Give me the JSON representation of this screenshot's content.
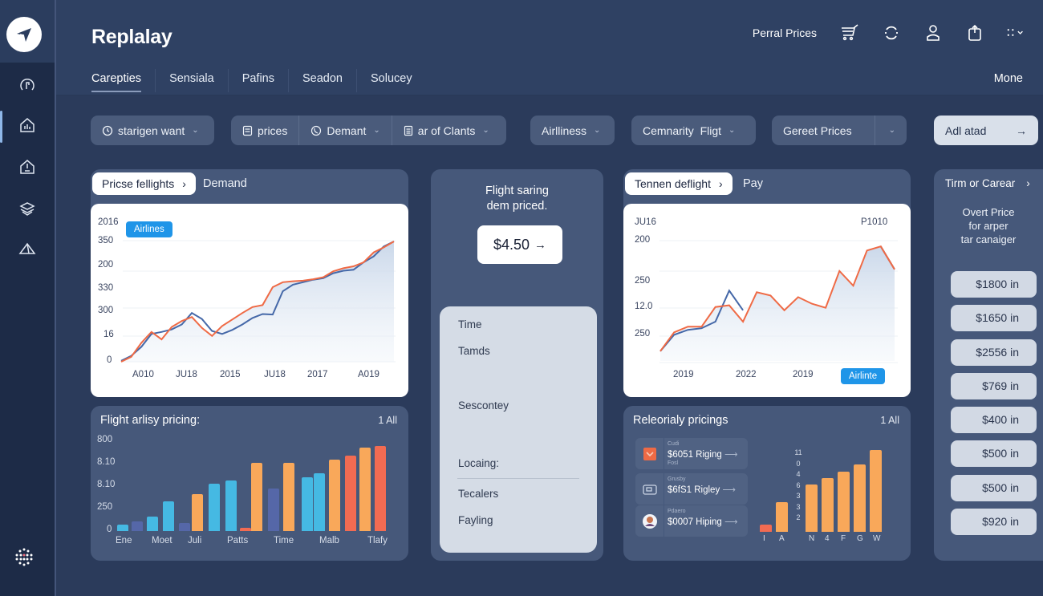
{
  "app": {
    "title": "Replalay",
    "logo_icon": "paper-plane-icon"
  },
  "sidebar": {
    "items": [
      {
        "name": "gauge",
        "icon": "gauge-icon",
        "active": false
      },
      {
        "name": "home-chart",
        "icon": "home-chart-icon",
        "active": true
      },
      {
        "name": "home-alert",
        "icon": "home-alert-icon",
        "active": false
      },
      {
        "name": "layers",
        "icon": "layers-icon",
        "active": false
      },
      {
        "name": "tent",
        "icon": "tent-icon",
        "active": false
      }
    ],
    "bottom_icon": "globe-dots-icon"
  },
  "header": {
    "link_label": "Perral Prices",
    "icons": [
      "cart-icon",
      "refresh-icon",
      "user-icon",
      "share-icon",
      "grid-menu-icon"
    ],
    "tabs": [
      {
        "label": "Carepties",
        "active": true
      },
      {
        "label": "Sensiala",
        "active": false
      },
      {
        "label": "Pafins",
        "active": false
      },
      {
        "label": "Seadon",
        "active": false
      },
      {
        "label": "Solucey",
        "active": false
      }
    ],
    "more_label": "Mone"
  },
  "filters": {
    "f1": {
      "label": "starigen want",
      "icon": "clock-icon"
    },
    "f2a": {
      "label": "prices",
      "icon": "list-icon"
    },
    "f2b": {
      "label": "Demant",
      "icon": "phone-icon"
    },
    "f2c": {
      "label": "ar of Clants",
      "icon": "doc-icon"
    },
    "f3": {
      "label": "Airlliness"
    },
    "f4": {
      "label": "Cemnarity  Fligt"
    },
    "f5": {
      "label": "Gereet Prices"
    },
    "action": {
      "label": "Adl atad",
      "icon": "arrow-right-icon"
    }
  },
  "card_price_flights": {
    "pill_label": "Pricse fellights",
    "side_label": "Demand",
    "badge": "Airlines"
  },
  "card_flight_pricing": {
    "title": "Flight arlisy pricing:",
    "meta": "1  All"
  },
  "card_middle": {
    "title_line1": "Flight saring",
    "title_line2": "dem priced.",
    "price": "$4.50",
    "list": [
      "Time",
      "Tamds",
      "Sescontey",
      "Locaing:",
      "Tecalers",
      "Fayling"
    ]
  },
  "card_tennen": {
    "pill_label": "Tennen deflight",
    "side_label": "Pay",
    "corner_left": "JU16",
    "corner_right": "P1010",
    "badge": "Airlinte"
  },
  "card_regional": {
    "title": "Releorialy pricings",
    "meta": "1  All",
    "rows": [
      {
        "sub": "Cudi",
        "value": "$6051 Riging",
        "icon": "check-box-icon",
        "sub2": "Fosl"
      },
      {
        "sub": "Grusby",
        "value": "$6fS1 Rigley",
        "icon": "card-icon",
        "sub2": ""
      },
      {
        "sub": "Pdaero",
        "value": "$0007 Hiping",
        "icon": "avatar-icon",
        "sub2": ""
      }
    ]
  },
  "card_right": {
    "header": "Tirm or Carear",
    "subtitle_l1": "Overt Price",
    "subtitle_l2": "for arper",
    "subtitle_l3": "tar canaiger",
    "prices": [
      "$1800 in",
      "$1650 in",
      "$2556 in",
      "$769 in",
      "$400 in",
      "$500 in",
      "$500 in",
      "$920 in"
    ]
  },
  "colors": {
    "bg": "#2f4163",
    "sidebar": "#1d2b47",
    "card": "#46587a",
    "accent_blue": "#1f95e8",
    "line_orange": "#ef6a45",
    "line_blue": "#4568a8",
    "bar_cyan": "#45b9e3",
    "bar_indigo": "#5567a8",
    "bar_orange": "#f9a85a",
    "bar_red": "#f26b52"
  },
  "chart_data": [
    {
      "type": "line",
      "title": "Pricse fellights",
      "y_tick_labels": [
        "2016",
        "350",
        "200",
        "330",
        "300",
        "16",
        "0"
      ],
      "x_tick_labels": [
        "A010",
        "JU18",
        "2015",
        "JU18",
        "2017",
        "A019"
      ],
      "legend": [
        "Airlines"
      ],
      "series": [
        {
          "name": "orange",
          "color": "#ef6a45",
          "values": [
            0,
            10,
            38,
            60,
            45,
            70,
            82,
            90,
            68,
            52,
            72,
            85,
            98,
            110,
            114,
            150,
            160,
            162,
            163,
            166,
            170,
            182,
            188,
            192,
            200,
            220,
            230,
            242
          ]
        },
        {
          "name": "blue",
          "color": "#4568a8",
          "values": [
            2,
            12,
            30,
            56,
            60,
            65,
            75,
            98,
            86,
            62,
            56,
            64,
            75,
            88,
            96,
            95,
            142,
            155,
            160,
            165,
            168,
            178,
            183,
            185,
            200,
            212,
            232,
            242
          ]
        }
      ],
      "grid": true
    },
    {
      "type": "bar",
      "title": "Flight arlisy pricing:",
      "y_tick_labels": [
        "800",
        "8.10",
        "8.10",
        "250",
        "0"
      ],
      "x_tick_labels": [
        "Ene",
        "Moet",
        "Juli",
        "Patts",
        "Time",
        "Malb",
        "Tlafy"
      ],
      "values": [
        8,
        11,
        17,
        35,
        9,
        43,
        56,
        59,
        4,
        80,
        50,
        80,
        63,
        68,
        84,
        89,
        98,
        100
      ],
      "colors": [
        "#45b9e3",
        "#5567a8",
        "#45b9e3",
        "#45b9e3",
        "#5567a8",
        "#f9a85a",
        "#45b9e3",
        "#45b9e3",
        "#f26b52",
        "#f9a85a",
        "#5567a8",
        "#f9a85a",
        "#45b9e3",
        "#45b9e3",
        "#f9a85a",
        "#f26b52",
        "#f9a85a",
        "#f26b52"
      ]
    },
    {
      "type": "line",
      "title": "Tennen deflight",
      "y_tick_labels": [
        "200",
        "250",
        "12.0",
        "250"
      ],
      "x_tick_labels": [
        "2019",
        "2022",
        "2019"
      ],
      "legend": [
        "Airlinte"
      ],
      "series": [
        {
          "name": "orange",
          "color": "#ef6a45",
          "values": [
            12,
            35,
            42,
            42,
            66,
            68,
            48,
            84,
            80,
            62,
            78,
            70,
            65,
            110,
            92,
            135,
            140,
            112
          ]
        },
        {
          "name": "blue",
          "color": "#4568a8",
          "values": [
            12,
            32,
            38,
            40,
            48,
            86,
            62,
            null,
            null,
            null,
            null,
            null,
            null,
            null,
            null,
            null,
            140,
            112
          ]
        }
      ],
      "grid": true
    },
    {
      "type": "bar",
      "title": "Releorialy pricings",
      "y_tick_labels": [
        "11",
        "0",
        "4",
        "6",
        "3",
        "3",
        "2"
      ],
      "x_tick_labels": [
        "I",
        "A",
        "N",
        "4",
        "F",
        "G",
        "W"
      ],
      "values": [
        9,
        36,
        58,
        66,
        74,
        82,
        100
      ],
      "colors": [
        "#f26b52",
        "#f9a85a",
        "#f9a85a",
        "#f9a85a",
        "#f9a85a",
        "#f9a85a",
        "#f9a85a"
      ]
    }
  ]
}
